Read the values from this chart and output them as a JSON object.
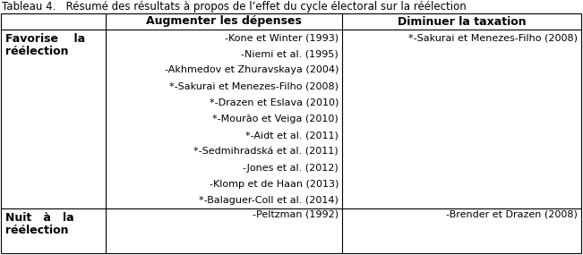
{
  "title": "Tableau 4.   Résumé des résultats à propos de l’effet du cycle électoral sur la réélection",
  "col1_header": "Augmenter les dépenses",
  "col2_header": "Diminuer la taxation",
  "row1_label_line1": "Favorise    la",
  "row1_label_line2": "réélection",
  "row2_label_line1": "Nuit   à   la",
  "row2_label_line2": "réélection",
  "row1_col1": [
    "-Kone et Winter (1993)",
    "-Niemi et al. (1995)",
    "-Akhmedov et Zhuravskaya (2004)",
    "*-Sakurai et Menezes-Filho (2008)",
    "*-Drazen et Eslava (2010)",
    "*-Mourão et Veiga (2010)",
    "*-Aidt et al. (2011)",
    "*-Sedmihradská et al. (2011)",
    "-Jones et al. (2012)",
    "-Klomp et de Haan (2013)",
    "*-Balaguer-Coll et al. (2014)"
  ],
  "row1_col2": "*-Sakurai et Menezes-Filho (2008)",
  "row2_col1": "-Peltzman (1992)",
  "row2_col2": "-Brender et Drazen (2008)",
  "bg_color": "#ffffff",
  "border_color": "#000000",
  "text_color": "#000000",
  "title_fontsize": 8.5,
  "header_fontsize": 9,
  "cell_fontsize": 8,
  "label_fontsize": 9
}
